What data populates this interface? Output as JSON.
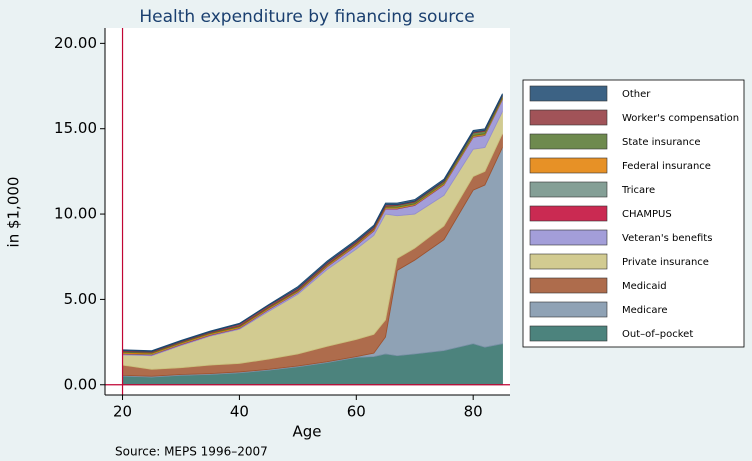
{
  "chart_data": {
    "type": "stacked_area",
    "title": "Health expenditure by financing source",
    "y_label": "in $1,000",
    "x_label": "Age",
    "note": "Source: MEPS 1996–2007",
    "x": [
      20,
      25,
      30,
      35,
      40,
      45,
      50,
      55,
      60,
      63,
      65,
      67,
      70,
      75,
      80,
      82,
      85
    ],
    "xlim": [
      17,
      86.3
    ],
    "xticks": [
      20,
      40,
      60,
      80
    ],
    "ylim": [
      -0.6,
      20.9
    ],
    "yticks": [
      {
        "value": 0,
        "label": "0.00"
      },
      {
        "value": 5,
        "label": "5.00"
      },
      {
        "value": 10,
        "label": "10.00"
      },
      {
        "value": 15,
        "label": "15.00"
      },
      {
        "value": 20,
        "label": "20.00"
      }
    ],
    "series": [
      {
        "name": "Out–of–pocket",
        "color": "#2d6d66",
        "values": [
          0.5,
          0.45,
          0.55,
          0.6,
          0.7,
          0.85,
          1.05,
          1.3,
          1.6,
          1.65,
          1.8,
          1.7,
          1.8,
          2.0,
          2.4,
          2.2,
          2.4
        ]
      },
      {
        "name": "Medicare",
        "color": "#7b92a8",
        "values": [
          0.05,
          0.05,
          0.05,
          0.05,
          0.05,
          0.05,
          0.05,
          0.05,
          0.05,
          0.2,
          1.0,
          5.0,
          5.5,
          6.5,
          9.0,
          9.5,
          11.5
        ]
      },
      {
        "name": "Medicaid",
        "color": "#a0522d",
        "values": [
          0.6,
          0.4,
          0.4,
          0.5,
          0.5,
          0.6,
          0.7,
          0.9,
          1.0,
          1.1,
          1.0,
          0.7,
          0.7,
          0.8,
          0.8,
          0.8,
          0.8
        ]
      },
      {
        "name": "Private insurance",
        "color": "#cac27e",
        "values": [
          0.6,
          0.8,
          1.3,
          1.7,
          2.0,
          2.8,
          3.5,
          4.5,
          5.3,
          5.8,
          6.2,
          2.5,
          2.0,
          1.8,
          1.6,
          1.4,
          1.3
        ]
      },
      {
        "name": "Veteran's benefits",
        "color": "#938dd2",
        "values": [
          0.05,
          0.05,
          0.05,
          0.05,
          0.05,
          0.1,
          0.1,
          0.15,
          0.2,
          0.25,
          0.3,
          0.4,
          0.5,
          0.6,
          0.7,
          0.7,
          0.7
        ]
      },
      {
        "name": "CHAMPUS",
        "color": "#c10534",
        "values": [
          0.02,
          0.02,
          0.02,
          0.02,
          0.02,
          0.02,
          0.02,
          0.02,
          0.02,
          0.02,
          0.02,
          0.02,
          0.02,
          0.02,
          0.02,
          0.02,
          0.02
        ]
      },
      {
        "name": "Tricare",
        "color": "#6e8e84",
        "values": [
          0.03,
          0.03,
          0.03,
          0.03,
          0.03,
          0.03,
          0.03,
          0.03,
          0.03,
          0.03,
          0.03,
          0.03,
          0.03,
          0.03,
          0.03,
          0.03,
          0.03
        ]
      },
      {
        "name": "Federal insurance",
        "color": "#e37e00",
        "values": [
          0.05,
          0.05,
          0.05,
          0.05,
          0.05,
          0.05,
          0.05,
          0.05,
          0.05,
          0.05,
          0.05,
          0.05,
          0.05,
          0.05,
          0.05,
          0.05,
          0.05
        ]
      },
      {
        "name": "State insurance",
        "color": "#55752f",
        "values": [
          0.05,
          0.05,
          0.05,
          0.05,
          0.05,
          0.05,
          0.05,
          0.05,
          0.05,
          0.05,
          0.05,
          0.1,
          0.1,
          0.1,
          0.15,
          0.15,
          0.1
        ]
      },
      {
        "name": "Worker's compensation",
        "color": "#90353b",
        "values": [
          0.05,
          0.05,
          0.05,
          0.05,
          0.1,
          0.1,
          0.1,
          0.1,
          0.1,
          0.1,
          0.1,
          0.05,
          0.05,
          0.05,
          0.05,
          0.05,
          0.05
        ]
      },
      {
        "name": "Other",
        "color": "#1a476f",
        "values": [
          0.05,
          0.05,
          0.05,
          0.05,
          0.05,
          0.05,
          0.1,
          0.1,
          0.1,
          0.1,
          0.1,
          0.1,
          0.1,
          0.1,
          0.1,
          0.1,
          0.1
        ]
      }
    ]
  }
}
